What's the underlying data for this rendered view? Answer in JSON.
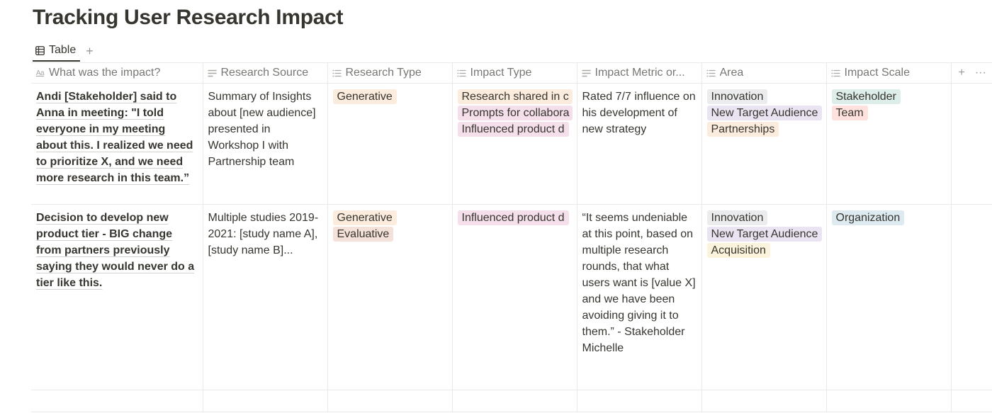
{
  "page": {
    "title": "Tracking User Research Impact"
  },
  "view": {
    "tab_label": "Table",
    "add_tab_symbol": "+",
    "add_column_symbol": "+",
    "more_symbol": "···"
  },
  "columns": [
    {
      "label": "What was the impact?",
      "icon": "title-aa-icon"
    },
    {
      "label": "Research Source",
      "icon": "text-lines-icon"
    },
    {
      "label": "Research Type",
      "icon": "multi-select-icon"
    },
    {
      "label": "Impact Type",
      "icon": "multi-select-icon"
    },
    {
      "label": "Impact Metric or...",
      "icon": "text-lines-icon"
    },
    {
      "label": "Area",
      "icon": "multi-select-icon"
    },
    {
      "label": "Impact Scale",
      "icon": "multi-select-icon"
    }
  ],
  "rows": [
    {
      "impact": "Andi [Stakeholder] said to Anna in meeting: \"I told everyone in my meeting about this. I realized we need to prioritize X, and we need more research in this team.”",
      "source": "Summary of Insights about [new audience] presented in Workshop I with Partnership team",
      "research_type": [
        {
          "label": "Generative",
          "color": "#fbecdd"
        }
      ],
      "impact_type": [
        {
          "label": "Research shared in c",
          "color": "#fbecdd"
        },
        {
          "label": "Prompts for collabora",
          "color": "#f4dfeb"
        },
        {
          "label": "Influenced product d",
          "color": "#f4dfeb"
        }
      ],
      "metric": "Rated 7/7 influence on his development of new strategy",
      "area": [
        {
          "label": "Innovation",
          "color": "#ebeced"
        },
        {
          "label": "New Target Audience",
          "color": "#eae4f2"
        },
        {
          "label": "Partnerships",
          "color": "#fbecdd"
        }
      ],
      "scale": [
        {
          "label": "Stakeholder",
          "color": "#ddedea"
        },
        {
          "label": "Team",
          "color": "#ffe2dd"
        }
      ]
    },
    {
      "impact": "Decision to develop new product tier - BIG change from partners previously saying they would never do a tier like this.",
      "source": "Multiple studies 2019-2021: [study name A], [study name B]...",
      "research_type": [
        {
          "label": "Generative",
          "color": "#fbecdd"
        },
        {
          "label": "Evaluative",
          "color": "#f4e2da"
        }
      ],
      "impact_type": [
        {
          "label": "Influenced product d",
          "color": "#f4dfeb"
        }
      ],
      "metric": "“It seems undeniable at this point, based on multiple research rounds, that what users want is [value X] and we have been avoiding giving it to them.” - Stakeholder Michelle",
      "area": [
        {
          "label": "Innovation",
          "color": "#ebeced"
        },
        {
          "label": "New Target Audience",
          "color": "#eae4f2"
        },
        {
          "label": "Acquisition",
          "color": "#fbf3db"
        }
      ],
      "scale": [
        {
          "label": "Organization",
          "color": "#ddebf1"
        }
      ]
    }
  ]
}
